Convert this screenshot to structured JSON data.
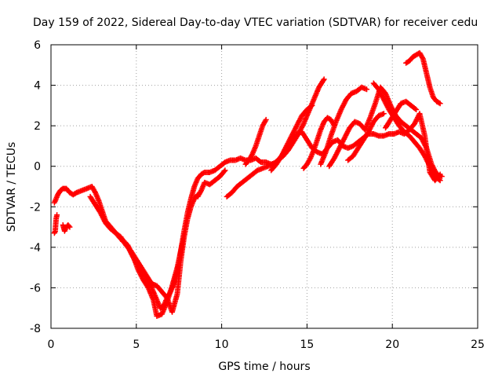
{
  "chart_data": {
    "type": "scatter",
    "title": "Day 159 of 2022, Sidereal Day-to-day VTEC variation (SDTVAR) for receiver cedu",
    "xlabel": "GPS time / hours",
    "ylabel": "SDTVAR / TECUs",
    "xlim": [
      0,
      25
    ],
    "ylim": [
      -8,
      6
    ],
    "xticks": [
      "0",
      "5",
      "10",
      "15",
      "20",
      "25"
    ],
    "yticks": [
      "-8",
      "-6",
      "-4",
      "-2",
      "0",
      "2",
      "4",
      "6"
    ],
    "grid": true,
    "marker": "plus",
    "color": "#ff0000",
    "series": [
      {
        "x": [
          0.2,
          0.25,
          0.3,
          0.35
        ],
        "y": [
          -3.3,
          -3.2,
          -2.6,
          -2.4
        ]
      },
      {
        "x": [
          0.2,
          0.4,
          0.55,
          0.7,
          0.9,
          1.1,
          1.3,
          1.5,
          1.8,
          2.1,
          2.4,
          2.6,
          2.8,
          3.0,
          3.2,
          3.5,
          3.8,
          4.1,
          4.4,
          4.7,
          5.0,
          5.3,
          5.6,
          5.9,
          6.2,
          6.4,
          6.6,
          6.8,
          7.0,
          7.2,
          7.4,
          7.6,
          7.8,
          8.0,
          8.2,
          8.4,
          8.6,
          8.8,
          9.0,
          9.3,
          9.6,
          9.9,
          10.2,
          10.5,
          10.8,
          11.1,
          11.4,
          11.7,
          12.0,
          12.3,
          12.6,
          12.9,
          13.2,
          13.5,
          13.8,
          14.1,
          14.4,
          14.7,
          15.0,
          15.3,
          15.6,
          15.9,
          16.2,
          16.5,
          16.8,
          17.1,
          17.4,
          17.7,
          18.0,
          18.3,
          18.6,
          18.9,
          19.2,
          19.5,
          19.8,
          20.1,
          20.4,
          20.7,
          21.0,
          21.3,
          21.6,
          21.9,
          22.2,
          22.5,
          22.8
        ],
        "y": [
          -1.8,
          -1.4,
          -1.2,
          -1.1,
          -1.1,
          -1.3,
          -1.4,
          -1.3,
          -1.2,
          -1.1,
          -1.0,
          -1.3,
          -1.7,
          -2.2,
          -2.7,
          -3.0,
          -3.3,
          -3.6,
          -3.8,
          -4.3,
          -4.8,
          -5.1,
          -5.5,
          -6.0,
          -6.6,
          -7.0,
          -6.9,
          -6.5,
          -6.2,
          -5.8,
          -5.2,
          -4.2,
          -3.2,
          -2.3,
          -1.6,
          -1.0,
          -0.6,
          -0.4,
          -0.3,
          -0.3,
          -0.2,
          0.0,
          0.2,
          0.3,
          0.3,
          0.4,
          0.3,
          0.3,
          0.4,
          0.2,
          0.2,
          0.1,
          0.2,
          0.5,
          0.9,
          1.3,
          1.6,
          1.7,
          1.3,
          0.9,
          0.7,
          0.6,
          0.9,
          1.2,
          1.3,
          1.0,
          0.9,
          1.0,
          1.2,
          1.4,
          1.6,
          1.6,
          1.5,
          1.5,
          1.6,
          1.6,
          1.7,
          1.6,
          1.8,
          2.1,
          2.6,
          1.5,
          -0.3,
          -0.7,
          -0.4
        ]
      },
      {
        "x": [
          0.7,
          0.8,
          0.9,
          1.0,
          1.1
        ],
        "y": [
          -2.9,
          -3.2,
          -3.0,
          -2.9,
          -3.0
        ]
      },
      {
        "x": [
          2.3,
          2.6,
          2.9,
          3.2,
          3.5,
          3.8,
          4.1,
          4.4,
          4.7,
          5.0,
          5.3,
          5.6,
          5.9,
          6.2,
          6.5,
          6.8,
          7.1,
          7.4,
          7.6,
          7.8,
          8.0,
          8.2,
          8.4,
          8.6
        ],
        "y": [
          -1.5,
          -1.9,
          -2.3,
          -2.8,
          -3.1,
          -3.3,
          -3.5,
          -3.9,
          -4.2,
          -4.6,
          -5.0,
          -5.4,
          -5.8,
          -5.9,
          -6.2,
          -6.5,
          -7.2,
          -6.3,
          -4.7,
          -3.5,
          -2.6,
          -2.0,
          -1.6,
          -1.4
        ]
      },
      {
        "x": [
          4.2,
          4.5,
          4.8,
          5.1,
          5.4,
          5.7,
          6.0,
          6.2,
          6.5,
          6.8,
          7.1,
          7.4,
          7.7
        ],
        "y": [
          -3.7,
          -3.9,
          -4.4,
          -5.1,
          -5.6,
          -6.0,
          -6.6,
          -7.4,
          -7.3,
          -6.7,
          -5.9,
          -5.0,
          -3.8
        ]
      },
      {
        "x": [
          8.6,
          8.8,
          9.0,
          9.3,
          9.6,
          9.9,
          10.2
        ],
        "y": [
          -1.5,
          -1.2,
          -0.8,
          -0.9,
          -0.7,
          -0.5,
          -0.2
        ]
      },
      {
        "x": [
          10.3,
          10.6,
          10.9,
          11.2,
          11.5,
          11.8,
          12.1,
          12.4,
          12.7,
          13.0,
          13.3,
          13.6,
          13.9,
          14.2,
          14.5,
          14.8,
          15.1,
          15.4,
          15.7,
          16.0
        ],
        "y": [
          -1.5,
          -1.3,
          -1.0,
          -0.8,
          -0.6,
          -0.4,
          -0.2,
          -0.1,
          0.0,
          0.1,
          0.3,
          0.5,
          0.8,
          1.2,
          1.6,
          2.1,
          2.7,
          3.3,
          3.9,
          4.3
        ]
      },
      {
        "x": [
          11.4,
          11.6,
          11.8,
          12.0,
          12.2,
          12.4,
          12.6
        ],
        "y": [
          0.1,
          0.3,
          0.6,
          1.0,
          1.5,
          2.0,
          2.3
        ]
      },
      {
        "x": [
          12.9,
          13.2,
          13.5,
          13.8,
          14.1,
          14.4,
          14.7,
          15.0,
          15.3
        ],
        "y": [
          -0.2,
          0.1,
          0.5,
          1.0,
          1.5,
          2.0,
          2.5,
          2.8,
          3.0
        ]
      },
      {
        "x": [
          14.8,
          15.0,
          15.2,
          15.4,
          15.6,
          15.8,
          16.0,
          16.2,
          16.4,
          16.6
        ],
        "y": [
          -0.1,
          0.1,
          0.4,
          0.8,
          1.3,
          1.8,
          2.2,
          2.4,
          2.3,
          2.0
        ]
      },
      {
        "x": [
          15.8,
          16.1,
          16.4,
          16.7,
          17.0,
          17.3,
          17.6,
          17.9,
          18.2,
          18.5
        ],
        "y": [
          0.1,
          0.7,
          1.5,
          2.2,
          2.8,
          3.3,
          3.6,
          3.7,
          3.9,
          3.8
        ]
      },
      {
        "x": [
          16.3,
          16.6,
          16.9,
          17.2,
          17.5,
          17.8,
          18.1,
          18.4,
          18.7,
          19.0,
          19.3,
          19.6,
          19.9,
          20.2,
          20.5,
          20.8,
          21.1,
          21.4,
          21.7,
          22.0,
          22.3,
          22.6,
          22.9
        ],
        "y": [
          0.0,
          0.4,
          0.9,
          1.4,
          1.9,
          2.2,
          2.1,
          1.8,
          2.4,
          3.1,
          3.9,
          3.6,
          3.0,
          2.5,
          2.2,
          2.0,
          1.8,
          1.6,
          1.4,
          0.9,
          0.1,
          -0.4,
          -0.5
        ]
      },
      {
        "x": [
          17.4,
          17.7,
          18.0,
          18.3,
          18.6,
          18.9,
          19.2,
          19.5
        ],
        "y": [
          0.3,
          0.5,
          0.9,
          1.3,
          1.7,
          2.2,
          2.5,
          2.6
        ]
      },
      {
        "x": [
          18.9,
          19.2,
          19.5,
          19.8,
          20.1,
          20.4,
          20.7,
          21.0,
          21.3,
          21.6,
          21.9,
          22.2,
          22.5,
          22.8
        ],
        "y": [
          4.1,
          3.8,
          3.3,
          2.8,
          2.4,
          2.0,
          1.7,
          1.5,
          1.2,
          0.9,
          0.5,
          0.0,
          -0.5,
          -0.7
        ]
      },
      {
        "x": [
          19.6,
          19.9,
          20.2,
          20.5,
          20.8,
          21.1,
          21.4
        ],
        "y": [
          1.9,
          2.3,
          2.7,
          3.1,
          3.2,
          3.0,
          2.8
        ]
      },
      {
        "x": [
          20.8,
          21.0,
          21.2,
          21.4,
          21.6,
          21.8,
          22.0,
          22.2,
          22.4,
          22.6,
          22.8
        ],
        "y": [
          5.1,
          5.2,
          5.4,
          5.5,
          5.6,
          5.3,
          4.6,
          3.9,
          3.4,
          3.2,
          3.1
        ]
      }
    ]
  }
}
